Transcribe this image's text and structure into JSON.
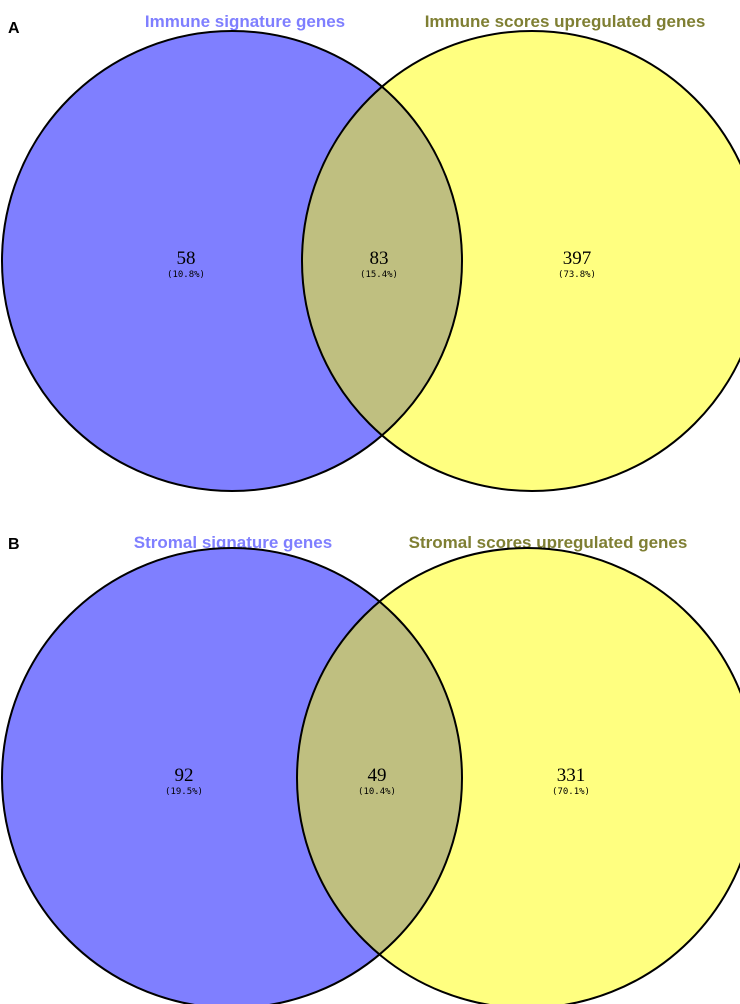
{
  "colors": {
    "left_set": "#7f7fff",
    "right_set": "#ffff80",
    "overlap": "#bfbf80",
    "left_title": "#7f7fff",
    "right_title": "#7f7f33",
    "outline": "#000000"
  },
  "panels": [
    {
      "letter": "A",
      "left_title": "Immune signature genes",
      "right_title": "Immune scores upregulated genes",
      "left_only": {
        "count": "58",
        "percent": "(10.8%)"
      },
      "overlap": {
        "count": "83",
        "percent": "(15.4%)"
      },
      "right_only": {
        "count": "397",
        "percent": "(73.8%)"
      }
    },
    {
      "letter": "B",
      "left_title": "Stromal signature genes",
      "right_title": "Stromal scores upregulated genes",
      "left_only": {
        "count": "92",
        "percent": "(19.5%)"
      },
      "overlap": {
        "count": "49",
        "percent": "(10.4%)"
      },
      "right_only": {
        "count": "331",
        "percent": "(70.1%)"
      }
    }
  ]
}
